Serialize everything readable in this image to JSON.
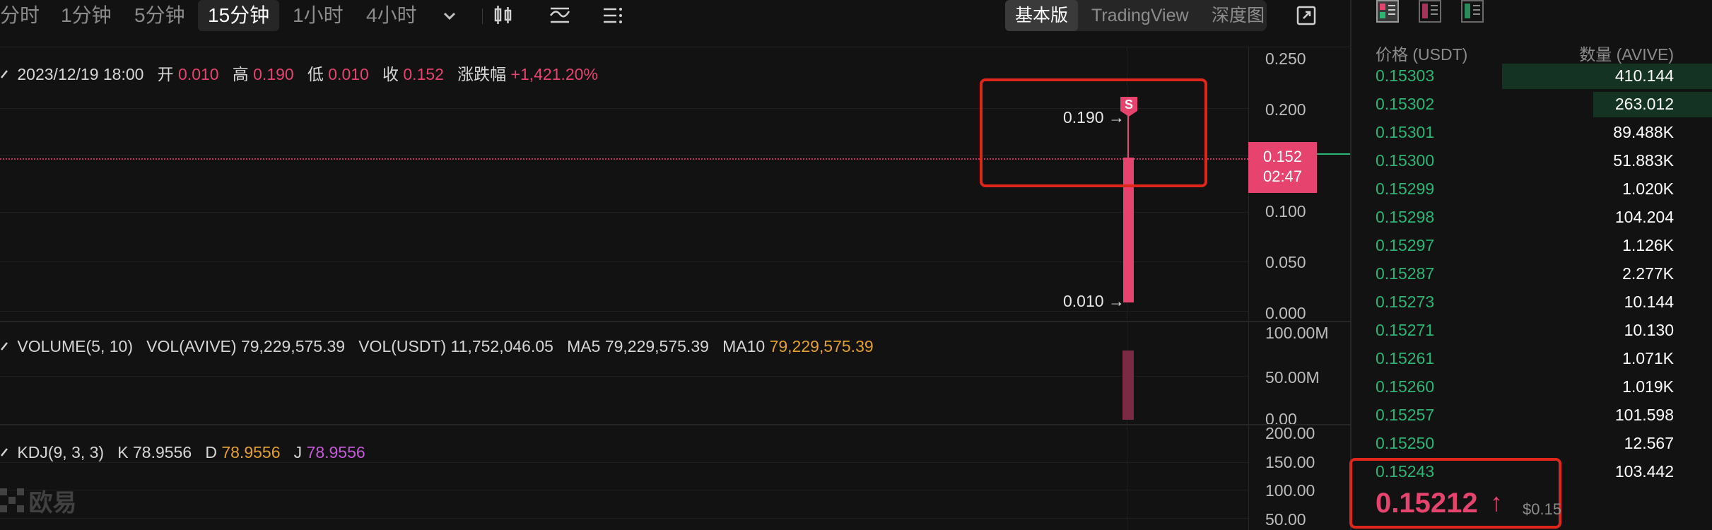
{
  "toolbar": {
    "timeframes": [
      "分时",
      "1分钟",
      "5分钟",
      "15分钟",
      "1小时",
      "4小时"
    ],
    "active_timeframe": "15分钟",
    "views": [
      "基本版",
      "TradingView",
      "深度图"
    ],
    "active_view": "基本版",
    "icons": [
      "chevron-down-icon",
      "candlestick-icon",
      "indicator-icon",
      "settings-list-icon",
      "fullscreen-icon"
    ]
  },
  "candle_info": {
    "datetime": "2023/12/19 18:00",
    "open_label": "开",
    "open": "0.010",
    "high_label": "高",
    "high": "0.190",
    "low_label": "低",
    "low": "0.010",
    "close_label": "收",
    "close": "0.152",
    "change_label": "涨跌幅",
    "change": "+1,421.20%"
  },
  "price_axis": [
    "0.250",
    "0.200",
    "0.100",
    "0.050",
    "0.000"
  ],
  "chart_annotations": {
    "high_marker": "0.190 →",
    "low_marker": "0.010 →",
    "signal_badge": "S",
    "current_price": "0.152",
    "countdown": "02:47"
  },
  "volume_info": {
    "title": "VOLUME(5, 10)",
    "vol_avive_label": "VOL(AVIVE)",
    "vol_avive": "79,229,575.39",
    "vol_usdt_label": "VOL(USDT)",
    "vol_usdt": "11,752,046.05",
    "ma5_label": "MA5",
    "ma5": "79,229,575.39",
    "ma10_label": "MA10",
    "ma10": "79,229,575.39"
  },
  "volume_axis": [
    "100.00M",
    "50.00M",
    "0.00"
  ],
  "kdj_info": {
    "title": "KDJ(9, 3, 3)",
    "k_label": "K",
    "k": "78.9556",
    "d_label": "D",
    "d": "78.9556",
    "j_label": "J",
    "j": "78.9556"
  },
  "kdj_axis": [
    "200.00",
    "150.00",
    "100.00",
    "50.00"
  ],
  "watermark": "欧易",
  "order_book": {
    "layout_icons": [
      "orderbook-both-icon",
      "orderbook-bids-icon",
      "orderbook-asks-icon"
    ],
    "price_header": "价格 (USDT)",
    "qty_header": "数量 (AVIVE)",
    "rows": [
      {
        "price": "0.15303",
        "qty": "410.144",
        "depth": 0.97
      },
      {
        "price": "0.15302",
        "qty": "263.012",
        "depth": 0.55
      },
      {
        "price": "0.15301",
        "qty": "89.488K",
        "depth": 0
      },
      {
        "price": "0.15300",
        "qty": "51.883K",
        "depth": 0
      },
      {
        "price": "0.15299",
        "qty": "1.020K",
        "depth": 0
      },
      {
        "price": "0.15298",
        "qty": "104.204",
        "depth": 0
      },
      {
        "price": "0.15297",
        "qty": "1.126K",
        "depth": 0
      },
      {
        "price": "0.15287",
        "qty": "2.277K",
        "depth": 0
      },
      {
        "price": "0.15273",
        "qty": "10.144",
        "depth": 0
      },
      {
        "price": "0.15271",
        "qty": "10.130",
        "depth": 0
      },
      {
        "price": "0.15261",
        "qty": "1.071K",
        "depth": 0
      },
      {
        "price": "0.15260",
        "qty": "1.019K",
        "depth": 0
      },
      {
        "price": "0.15257",
        "qty": "101.598",
        "depth": 0
      },
      {
        "price": "0.15250",
        "qty": "12.567",
        "depth": 0
      },
      {
        "price": "0.15243",
        "qty": "103.442",
        "depth": 0
      }
    ],
    "last_price": "0.15212",
    "last_arrow": "↑",
    "usd_price": "$0.15"
  },
  "colors": {
    "up": "#2bb673",
    "down": "#e6446f",
    "highlight_box": "#e0251b",
    "orange": "#e3a02f",
    "magenta": "#c45ad8"
  }
}
